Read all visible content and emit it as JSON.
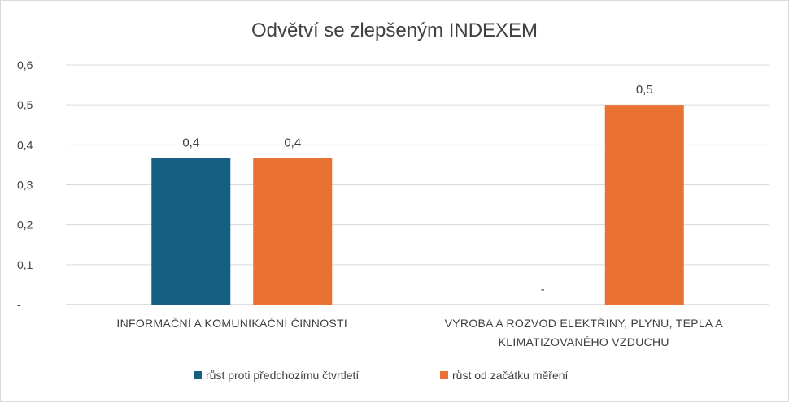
{
  "chart_data": {
    "type": "bar",
    "title": "Odvětví se zlepšeným INDEXEM",
    "xlabel": "",
    "ylabel": "",
    "ylim": [
      0,
      0.6
    ],
    "yticks": [
      {
        "value": 0,
        "label": "-"
      },
      {
        "value": 0.1,
        "label": "0,1"
      },
      {
        "value": 0.2,
        "label": "0,2"
      },
      {
        "value": 0.3,
        "label": "0,3"
      },
      {
        "value": 0.4,
        "label": "0,4"
      },
      {
        "value": 0.5,
        "label": "0,5"
      },
      {
        "value": 0.6,
        "label": "0,6"
      }
    ],
    "grid": true,
    "legend_position": "bottom",
    "categories": [
      [
        "INFORMAČNÍ A KOMUNIKAČNÍ ČINNOSTI"
      ],
      [
        "VÝROBA A ROZVOD ELEKTŘINY, PLYNU, TEPLA A",
        "KLIMATIZOVANÉHO VZDUCHU"
      ]
    ],
    "series": [
      {
        "name": "růst proti předchozímu čtvrtletí",
        "color": "#156082",
        "values": [
          0.367,
          0
        ],
        "labels": [
          "0,4",
          "-"
        ]
      },
      {
        "name": "růst od začátku měření",
        "color": "#e97132",
        "values": [
          0.367,
          0.5
        ],
        "labels": [
          "0,4",
          "0,5"
        ]
      }
    ]
  }
}
